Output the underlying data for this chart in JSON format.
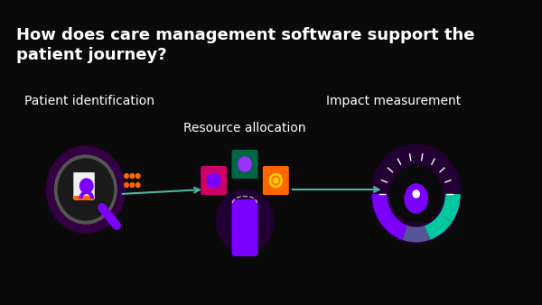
{
  "bg_color": "#0a0a0a",
  "title_line1": "How does care management software support the",
  "title_line2": "patient journey?",
  "title_color": "#ffffff",
  "title_fontsize": 13,
  "title_bold": true,
  "label_patient": "Patient identification",
  "label_resource": "Resource allocation",
  "label_impact": "Impact measurement",
  "label_color": "#ffffff",
  "label_fontsize": 10,
  "arrow_color": "#4db8a0",
  "purple_main": "#7b00ff",
  "purple_light": "#9b30ff",
  "purple_glow": "#5a0099",
  "teal_color": "#00c8a0",
  "orange_color": "#ff6600",
  "white_color": "#ffffff",
  "gray_color": "#888888"
}
